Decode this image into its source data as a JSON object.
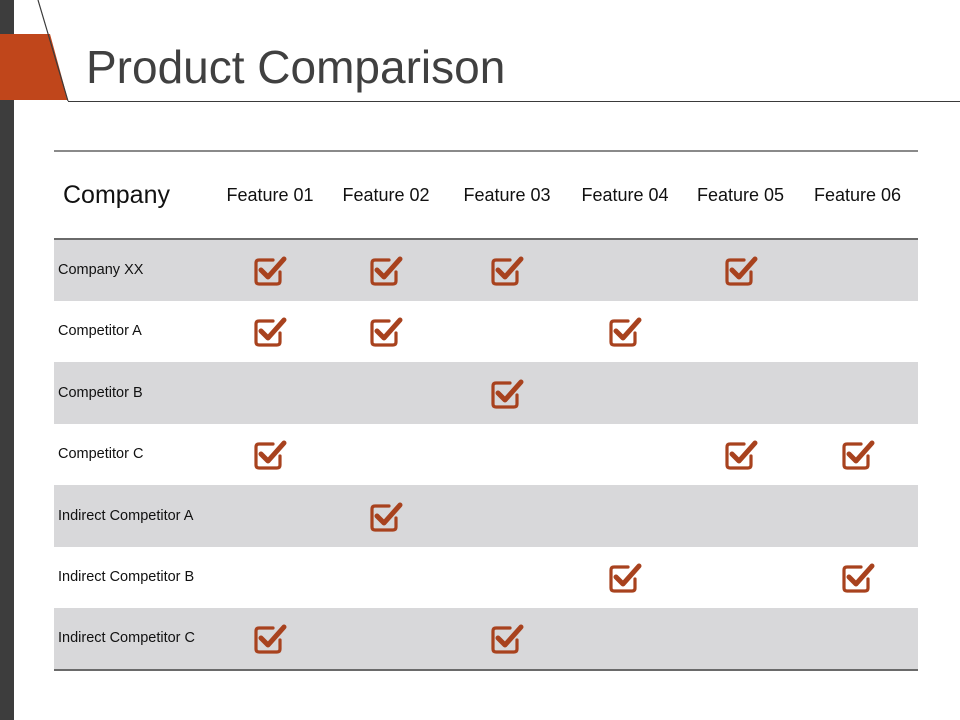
{
  "slide": {
    "title": "Product Comparison"
  },
  "colors": {
    "accent": "#c0461b",
    "check": "#a8421e",
    "row_shade": "#d8d8da",
    "side_bar": "#3d3d3d"
  },
  "table": {
    "company_header": "Company",
    "features": [
      "Feature 01",
      "Feature 02",
      "Feature 03",
      "Feature 04",
      "Feature 05",
      "Feature 06"
    ],
    "rows": [
      {
        "name": "Company XX",
        "checks": [
          true,
          true,
          true,
          false,
          true,
          false
        ]
      },
      {
        "name": "Competitor A",
        "checks": [
          true,
          true,
          false,
          true,
          false,
          false
        ]
      },
      {
        "name": "Competitor B",
        "checks": [
          false,
          false,
          true,
          false,
          false,
          false
        ]
      },
      {
        "name": "Competitor C",
        "checks": [
          true,
          false,
          false,
          false,
          true,
          true
        ]
      },
      {
        "name": "Indirect Competitor A",
        "checks": [
          false,
          true,
          false,
          false,
          false,
          false
        ]
      },
      {
        "name": "Indirect Competitor B",
        "checks": [
          false,
          false,
          false,
          true,
          false,
          true
        ]
      },
      {
        "name": "Indirect Competitor C",
        "checks": [
          true,
          false,
          true,
          false,
          false,
          false
        ]
      }
    ],
    "check_icon": "checkbox-checked-icon"
  }
}
